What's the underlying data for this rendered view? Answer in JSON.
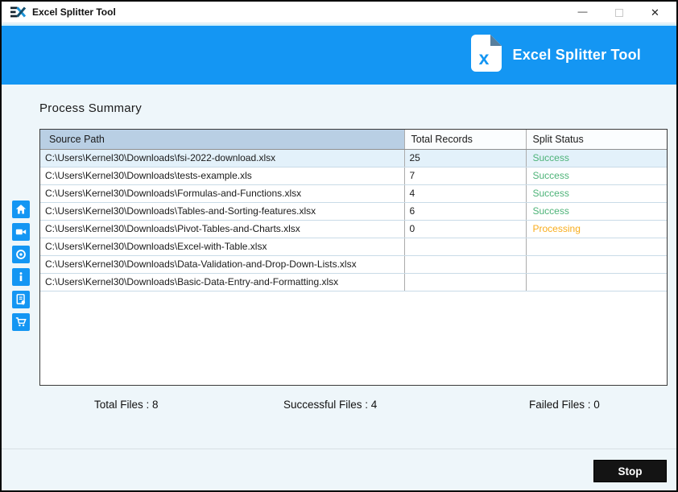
{
  "window": {
    "title": "Excel Splitter Tool",
    "minimize_glyph": "—",
    "close_glyph": "✕"
  },
  "header": {
    "app_name": "Excel Splitter Tool",
    "logo_letter": "x"
  },
  "main": {
    "heading": "Process Summary",
    "summary": {
      "total_files": "Total Files : 8",
      "successful_files": "Successful Files : 4",
      "failed_files": "Failed Files : 0"
    }
  },
  "table": {
    "columns": [
      "Source Path",
      "Total Records",
      "Split Status"
    ],
    "rows": [
      {
        "path": "C:\\Users\\Kernel30\\Downloads\\fsi-2022-download.xlsx",
        "records": "25",
        "status": "Success"
      },
      {
        "path": "C:\\Users\\Kernel30\\Downloads\\tests-example.xls",
        "records": "7",
        "status": "Success"
      },
      {
        "path": "C:\\Users\\Kernel30\\Downloads\\Formulas-and-Functions.xlsx",
        "records": "4",
        "status": "Success"
      },
      {
        "path": "C:\\Users\\Kernel30\\Downloads\\Tables-and-Sorting-features.xlsx",
        "records": "6",
        "status": "Success"
      },
      {
        "path": "C:\\Users\\Kernel30\\Downloads\\Pivot-Tables-and-Charts.xlsx",
        "records": "0",
        "status": "Processing"
      },
      {
        "path": "C:\\Users\\Kernel30\\Downloads\\Excel-with-Table.xlsx",
        "records": "",
        "status": ""
      },
      {
        "path": "C:\\Users\\Kernel30\\Downloads\\Data-Validation-and-Drop-Down-Lists.xlsx",
        "records": "",
        "status": ""
      },
      {
        "path": "C:\\Users\\Kernel30\\Downloads\\Basic-Data-Entry-and-Formatting.xlsx",
        "records": "",
        "status": ""
      }
    ]
  },
  "sidebar": {
    "icons": [
      "home-icon",
      "video-icon",
      "support-icon",
      "info-icon",
      "license-icon",
      "cart-icon"
    ]
  },
  "footer": {
    "stop_label": "Stop"
  },
  "colors": {
    "accent_blue": "#1496f3",
    "success": "#4db378",
    "processing": "#f8ad1d",
    "table_header_bg": "#b9cfe4",
    "active_row_bg": "#e3f1fa",
    "stop_button_bg": "#141414"
  }
}
